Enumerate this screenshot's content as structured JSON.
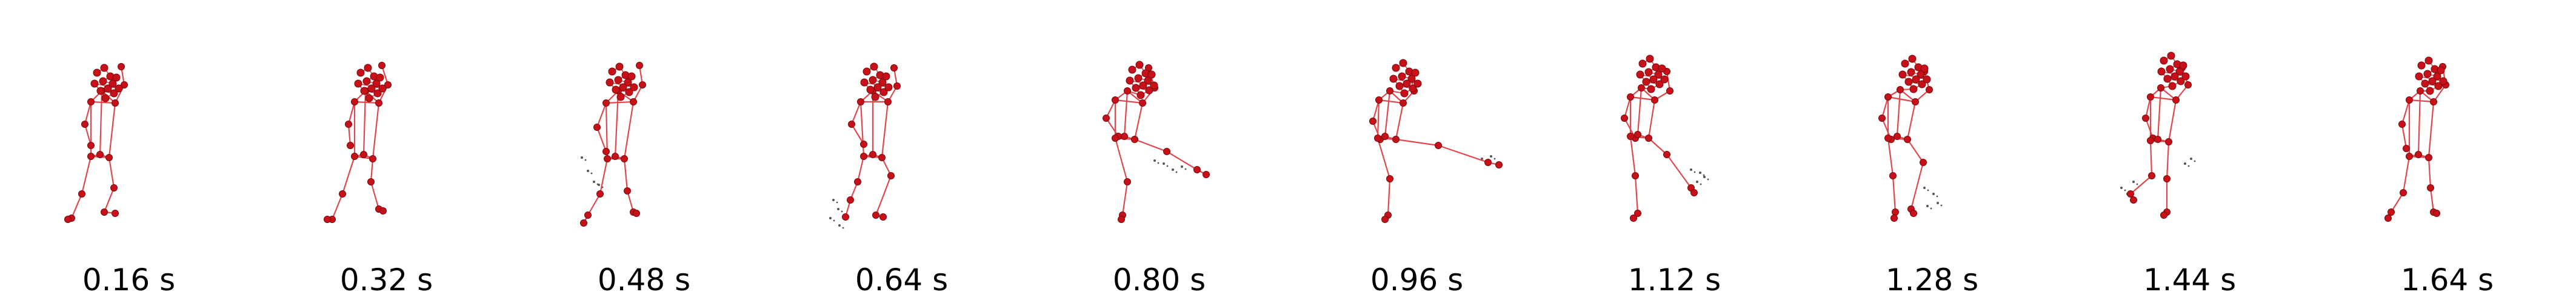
{
  "colors": {
    "skeleton_line": "#e0474c",
    "joint_fill": "#c8101a",
    "joint_edge": "#7a0a0a",
    "trail_dots": "#555555",
    "caption_text": "#000000"
  },
  "frames": [
    {
      "label": "0.16 s",
      "pose": "standing-hand-to-head"
    },
    {
      "label": "0.32 s",
      "pose": "standing-hand-to-head"
    },
    {
      "label": "0.48 s",
      "pose": "standing-hand-to-head"
    },
    {
      "label": "0.64 s",
      "pose": "standing-hand-to-head-knee-bent"
    },
    {
      "label": "0.80 s",
      "pose": "kicking-leg-raised"
    },
    {
      "label": "0.96 s",
      "pose": "kicking-leg-extended"
    },
    {
      "label": "1.12 s",
      "pose": "kicking-leg-lowering"
    },
    {
      "label": "1.28 s",
      "pose": "kicking-leg-returning"
    },
    {
      "label": "1.44 s",
      "pose": "standing-leg-crossed"
    },
    {
      "label": "1.64 s",
      "pose": "standing-hand-to-head"
    }
  ]
}
